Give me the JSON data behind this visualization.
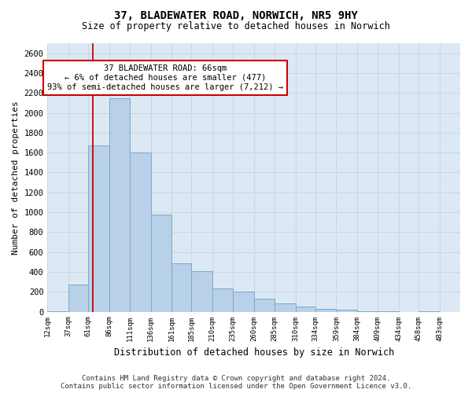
{
  "title": "37, BLADEWATER ROAD, NORWICH, NR5 9HY",
  "subtitle": "Size of property relative to detached houses in Norwich",
  "xlabel": "Distribution of detached houses by size in Norwich",
  "ylabel": "Number of detached properties",
  "footnote1": "Contains HM Land Registry data © Crown copyright and database right 2024.",
  "footnote2": "Contains public sector information licensed under the Open Government Licence v3.0.",
  "annotation_line1": "37 BLADEWATER ROAD: 66sqm",
  "annotation_line2": "← 6% of detached houses are smaller (477)",
  "annotation_line3": "93% of semi-detached houses are larger (7,212) →",
  "property_size": 66,
  "bar_color": "#b8d0e8",
  "bar_edgecolor": "#7aaac8",
  "vline_color": "#cc0000",
  "annotation_box_color": "#cc0000",
  "grid_color": "#c8d8e8",
  "background_color": "#dce9f5",
  "bins": [
    12,
    37,
    61,
    86,
    111,
    136,
    161,
    185,
    210,
    235,
    260,
    285,
    310,
    334,
    359,
    384,
    409,
    434,
    458,
    483,
    508
  ],
  "counts": [
    8,
    270,
    1670,
    2150,
    1600,
    980,
    490,
    410,
    230,
    200,
    130,
    85,
    50,
    25,
    20,
    8,
    5,
    0,
    5,
    0,
    3
  ],
  "ylim": [
    0,
    2700
  ],
  "yticks": [
    0,
    200,
    400,
    600,
    800,
    1000,
    1200,
    1400,
    1600,
    1800,
    2000,
    2200,
    2400,
    2600
  ]
}
